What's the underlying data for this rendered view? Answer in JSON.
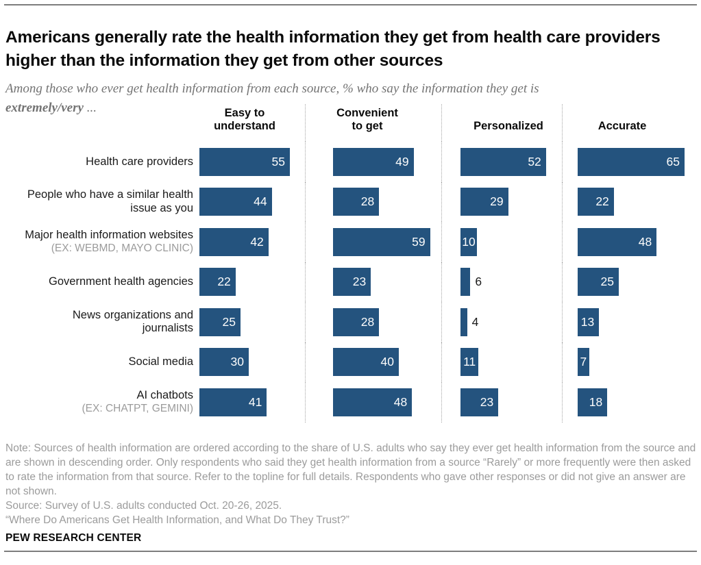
{
  "header": {
    "title": "Americans generally rate the health information they get from health care providers higher than the information they get from other sources",
    "subtitle_line1": "Among those who ever get health information from each source, % who say the information they get is",
    "subtitle_bold": "extremely/very",
    "subtitle_suffix": " ..."
  },
  "chart_data": {
    "type": "bar",
    "orientation": "horizontal",
    "unit": "%",
    "bar_color": "#24537e",
    "xlim": [
      0,
      65
    ],
    "grid": false,
    "legend": "none",
    "categories": [
      {
        "label_line1": "Health care providers"
      },
      {
        "label_line1": "People who have a similar health",
        "label_line2": "issue as you"
      },
      {
        "label_line1": "Major health information websites",
        "sublabel": "(EX: WEBMD, MAYO CLINIC)"
      },
      {
        "label_line1": "Government health agencies"
      },
      {
        "label_line1": "News organizations and",
        "label_line2": "journalists"
      },
      {
        "label_line1": "Social media"
      },
      {
        "label_line1": "AI chatbots",
        "sublabel": "(EX: CHATPT, GEMINI)"
      }
    ],
    "series": [
      {
        "name": "Easy to understand",
        "values": [
          55,
          44,
          42,
          22,
          25,
          30,
          41
        ]
      },
      {
        "name": "Convenient to get",
        "values": [
          49,
          28,
          59,
          23,
          28,
          40,
          48
        ]
      },
      {
        "name": "Personalized",
        "values": [
          52,
          29,
          10,
          6,
          4,
          11,
          23
        ]
      },
      {
        "name": "Accurate",
        "values": [
          65,
          22,
          48,
          25,
          13,
          7,
          18
        ]
      }
    ]
  },
  "footer": {
    "note": "Note: Sources of health information are ordered according to the share of U.S. adults who say they ever get health information from the source and are shown in descending order. Only respondents who said they get health information from a source “Rarely” or more frequently were then asked to rate the information from that source. Refer to the topline for full details. Respondents who gave other responses or did not give an answer are not shown.",
    "source": "Source: Survey of U.S. adults conducted Oct. 20-26, 2025.",
    "quote": "“Where Do Americans Get Health Information, and What Do They Trust?”",
    "brand": "PEW RESEARCH CENTER"
  }
}
